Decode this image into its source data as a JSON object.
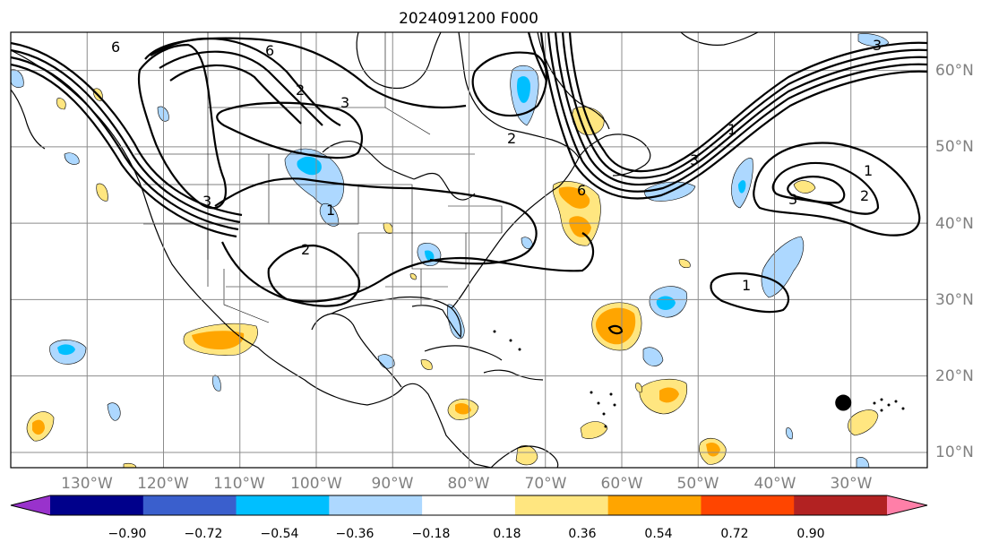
{
  "title": "2024091200 F000",
  "map": {
    "projection": "PlateCarree",
    "lon_range": [
      -140,
      -20
    ],
    "lat_range": [
      8,
      65
    ],
    "lat_labels": [
      "10°N",
      "20°N",
      "30°N",
      "40°N",
      "50°N",
      "60°N"
    ],
    "lon_labels": [
      "130°W",
      "120°W",
      "110°W",
      "100°W",
      "90°W",
      "80°W",
      "70°W",
      "60°W",
      "50°W",
      "40°W",
      "30°W"
    ],
    "gridlines": true,
    "marker": {
      "name": "black-dot",
      "lon": -31,
      "lat": 16.5
    }
  },
  "contour_labels": [
    "6",
    "6",
    "3",
    "2",
    "3",
    "1",
    "2",
    "3",
    "1",
    "2",
    "3",
    "6",
    "1",
    "3",
    "2",
    "1"
  ],
  "colorbar": {
    "ticks": [
      "−0.90",
      "−0.72",
      "−0.54",
      "−0.36",
      "−0.18",
      "0.18",
      "0.36",
      "0.54",
      "0.72",
      "0.90"
    ],
    "colors": [
      "#9932cc",
      "#00008b",
      "#3a5fcd",
      "#00bfff",
      "#add8ff",
      "#ffffff",
      "#ffe680",
      "#ffa500",
      "#ff4500",
      "#b22222",
      "#ff7fa8"
    ],
    "extend": "both"
  }
}
